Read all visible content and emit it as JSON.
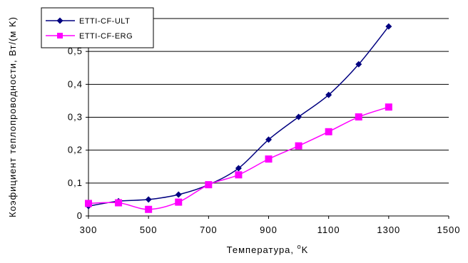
{
  "chart_data": {
    "type": "line",
    "xlabel": "Температура, ",
    "xlabel_unit_sup": "o",
    "xlabel_unit": "K",
    "ylabel": "Коэфициент теплопроводности, Вт/(м K)",
    "xlim": [
      300,
      1500
    ],
    "ylim": [
      0,
      0.6
    ],
    "x_ticks": [
      300,
      500,
      700,
      900,
      1100,
      1300,
      1500
    ],
    "y_ticks": [
      0,
      0.1,
      0.2,
      0.3,
      0.4,
      0.5
    ],
    "y_tick_labels": [
      "0",
      "0,1",
      "0,2",
      "0,3",
      "0,4",
      "0,5"
    ],
    "grid": "horizontal",
    "legend_position": "top-left",
    "series": [
      {
        "name": "ETTI-CF-ULT",
        "color": "#000080",
        "marker": "diamond",
        "smooth": true,
        "x": [
          300,
          400,
          500,
          600,
          700,
          800,
          900,
          1000,
          1100,
          1200,
          1300
        ],
        "y": [
          0.03,
          0.045,
          0.05,
          0.065,
          0.095,
          0.145,
          0.232,
          0.301,
          0.368,
          0.461,
          0.576
        ]
      },
      {
        "name": "ETTI-CF-ERG",
        "color": "#FF00FF",
        "marker": "square",
        "smooth": true,
        "x": [
          300,
          400,
          500,
          600,
          700,
          800,
          900,
          1000,
          1100,
          1200,
          1300
        ],
        "y": [
          0.038,
          0.04,
          0.02,
          0.042,
          0.095,
          0.125,
          0.173,
          0.213,
          0.256,
          0.301,
          0.331
        ]
      }
    ]
  }
}
